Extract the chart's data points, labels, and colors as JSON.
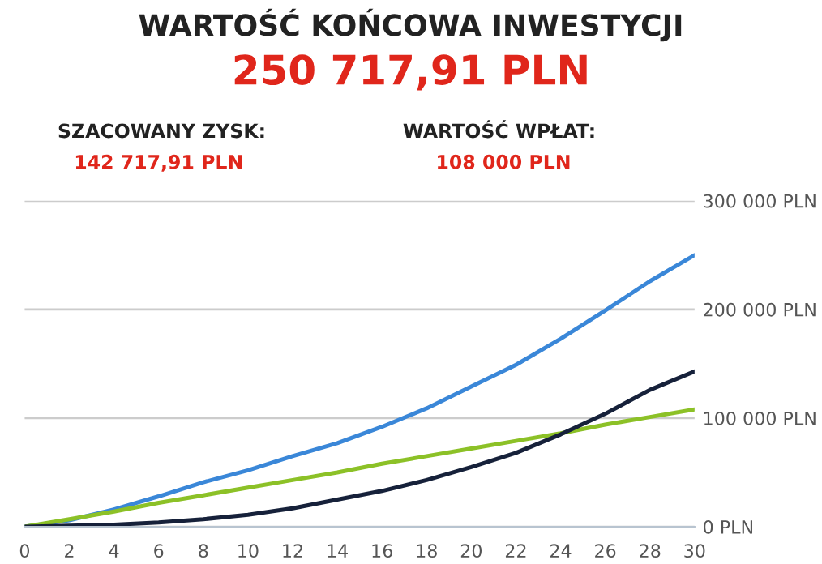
{
  "chart_data": {
    "type": "line",
    "title": "WARTOŚĆ KOŃCOWA INWESTYCJI",
    "subtitle": "250 717,91 PLN",
    "annotations": [
      "SZACOWANY ZYSK:",
      "142 717,91 PLN",
      "WARTOŚĆ WPŁAT:",
      "108 000 PLN"
    ],
    "x": [
      0,
      2,
      4,
      6,
      8,
      10,
      12,
      14,
      16,
      18,
      20,
      22,
      24,
      26,
      28,
      30
    ],
    "series": [
      {
        "color": "#3a87d8",
        "values": [
          0,
          6000,
          16000,
          28000,
          41000,
          52000,
          65000,
          77000,
          92000,
          109000,
          129000,
          149000,
          173000,
          199000,
          226000,
          250000
        ]
      },
      {
        "color": "#8cc127",
        "values": [
          0,
          7000,
          14000,
          22000,
          29000,
          36000,
          43000,
          50000,
          58000,
          65000,
          72000,
          79000,
          86000,
          94000,
          101000,
          108000
        ]
      },
      {
        "color": "#16213a",
        "values": [
          0,
          1000,
          2000,
          4000,
          7000,
          11000,
          17000,
          25000,
          33000,
          43000,
          55000,
          68000,
          85000,
          104000,
          126000,
          143000
        ]
      }
    ],
    "xlim": [
      0,
      30
    ],
    "xticks": [
      0,
      2,
      4,
      6,
      8,
      10,
      12,
      14,
      16,
      18,
      20,
      22,
      24,
      26,
      28,
      30
    ],
    "ylim": [
      0,
      300000
    ],
    "yticks": [
      {
        "value": 0,
        "label": "0 PLN"
      },
      {
        "value": 100000,
        "label": "100 000 PLN"
      },
      {
        "value": 200000,
        "label": "200 000 PLN"
      },
      {
        "value": 300000,
        "label": "300 000 PLN"
      }
    ],
    "grid": "y",
    "marker": "none",
    "line_style": "solid"
  }
}
